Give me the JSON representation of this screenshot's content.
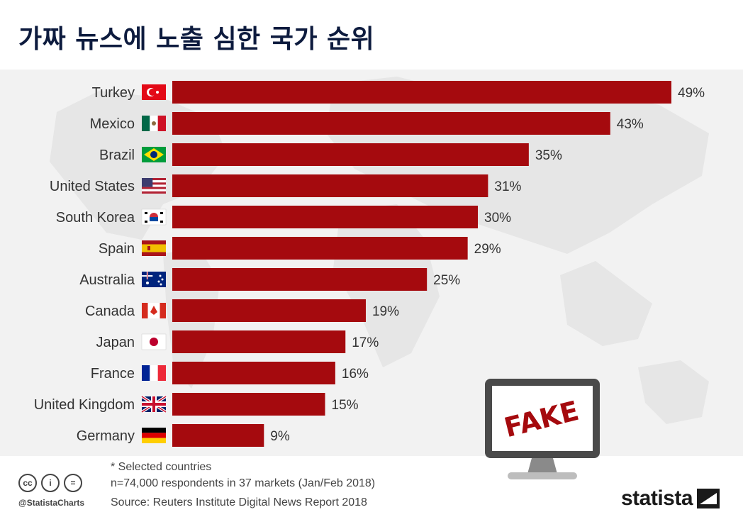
{
  "title": "가짜 뉴스에 노출 심한 국가 순위",
  "chart_data": {
    "type": "bar",
    "orientation": "horizontal",
    "title": "가짜 뉴스에 노출 심한 국가 순위",
    "categories": [
      "Turkey",
      "Mexico",
      "Brazil",
      "United States",
      "South Korea",
      "Spain",
      "Australia",
      "Canada",
      "Japan",
      "France",
      "United Kingdom",
      "Germany"
    ],
    "values": [
      49,
      43,
      35,
      31,
      30,
      29,
      25,
      19,
      17,
      16,
      15,
      9
    ],
    "value_labels": [
      "49%",
      "43%",
      "35%",
      "31%",
      "30%",
      "29%",
      "25%",
      "19%",
      "17%",
      "16%",
      "15%",
      "9%"
    ],
    "flag_icons": [
      "turkey-flag-icon",
      "mexico-flag-icon",
      "brazil-flag-icon",
      "usa-flag-icon",
      "south-korea-flag-icon",
      "spain-flag-icon",
      "australia-flag-icon",
      "canada-flag-icon",
      "japan-flag-icon",
      "france-flag-icon",
      "uk-flag-icon",
      "germany-flag-icon"
    ],
    "xlim": [
      0,
      49
    ],
    "bar_color": "#a50a0e",
    "grid": false
  },
  "illustration": {
    "monitor_text": "FAKE",
    "text_color": "#a50a0e"
  },
  "footer": {
    "note1": "* Selected countries",
    "note2": "n=74,000 respondents in 37 markets (Jan/Feb 2018)",
    "source": "Source: Reuters Institute Digital News Report 2018",
    "handle": "@StatistaCharts",
    "cc_icons": [
      "cc-icon",
      "by-icon",
      "nd-icon"
    ],
    "cc_glyphs": [
      "cc",
      "i",
      "="
    ],
    "brand": "statista"
  }
}
